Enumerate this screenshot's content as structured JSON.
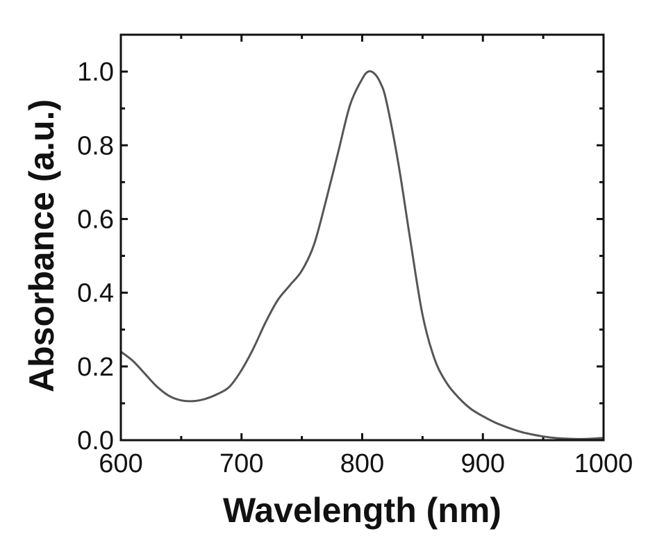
{
  "chart_data": {
    "type": "line",
    "title": "",
    "xlabel": "Wavelength (nm)",
    "ylabel": "Absorbance (a.u.)",
    "xlim": [
      600,
      1000
    ],
    "ylim": [
      0.0,
      1.1
    ],
    "xticks": [
      600,
      700,
      800,
      900,
      1000
    ],
    "xtick_labels": [
      "600",
      "700",
      "800",
      "900",
      "1000"
    ],
    "yticks": [
      0.0,
      0.2,
      0.4,
      0.6,
      0.8,
      1.0
    ],
    "ytick_labels": [
      "0.0",
      "0.2",
      "0.4",
      "0.6",
      "0.8",
      "1.0"
    ],
    "grid": false,
    "legend": "none",
    "line_color": "#555555",
    "series": [
      {
        "x": [
          600,
          610,
          620,
          630,
          640,
          650,
          660,
          670,
          680,
          690,
          700,
          710,
          720,
          730,
          740,
          750,
          760,
          770,
          780,
          790,
          800,
          805,
          810,
          815,
          820,
          830,
          840,
          850,
          860,
          870,
          880,
          890,
          900,
          910,
          920,
          930,
          940,
          950,
          960,
          970,
          980,
          990,
          1000
        ],
        "y": [
          0.24,
          0.215,
          0.18,
          0.145,
          0.12,
          0.108,
          0.106,
          0.112,
          0.125,
          0.145,
          0.19,
          0.25,
          0.32,
          0.38,
          0.42,
          0.46,
          0.53,
          0.65,
          0.78,
          0.91,
          0.98,
          1.0,
          0.995,
          0.97,
          0.92,
          0.75,
          0.54,
          0.34,
          0.22,
          0.155,
          0.115,
          0.085,
          0.065,
          0.048,
          0.035,
          0.024,
          0.016,
          0.01,
          0.006,
          0.004,
          0.003,
          0.004,
          0.006
        ]
      }
    ]
  }
}
